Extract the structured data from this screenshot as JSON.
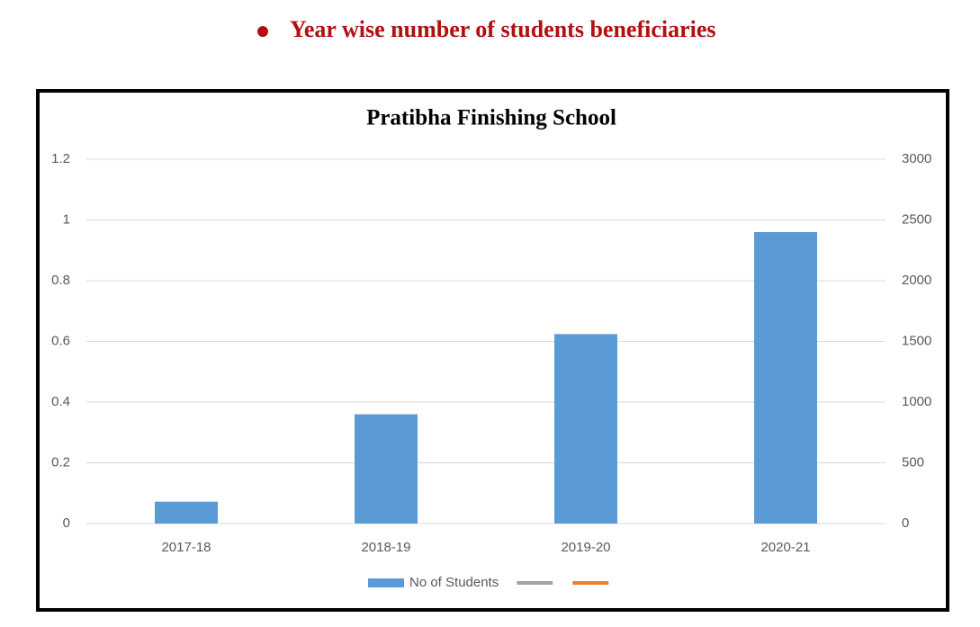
{
  "heading": "Year wise number of students beneficiaries",
  "chart_data": {
    "type": "bar",
    "title": "Pratibha Finishing School",
    "categories": [
      "2017-18",
      "2018-19",
      "2019-20",
      "2020-21"
    ],
    "series": [
      {
        "name": "No of Students",
        "color": "#5b9bd5",
        "axis": "y2",
        "values": [
          180,
          900,
          1560,
          2400
        ]
      },
      {
        "color": "#a5a5a5",
        "values": [
          null,
          null,
          null,
          null
        ]
      },
      {
        "color": "#ed7d31",
        "values": [
          null,
          null,
          null,
          null
        ]
      }
    ],
    "ylim": [
      0,
      1.2
    ],
    "yticks": [
      0,
      0.2,
      0.4,
      0.6,
      0.8,
      1,
      1.2
    ],
    "y2lim": [
      0,
      3000
    ],
    "y2ticks": [
      0,
      500,
      1000,
      1500,
      2000,
      2500,
      3000
    ],
    "grid": true,
    "legend": "bottom"
  }
}
